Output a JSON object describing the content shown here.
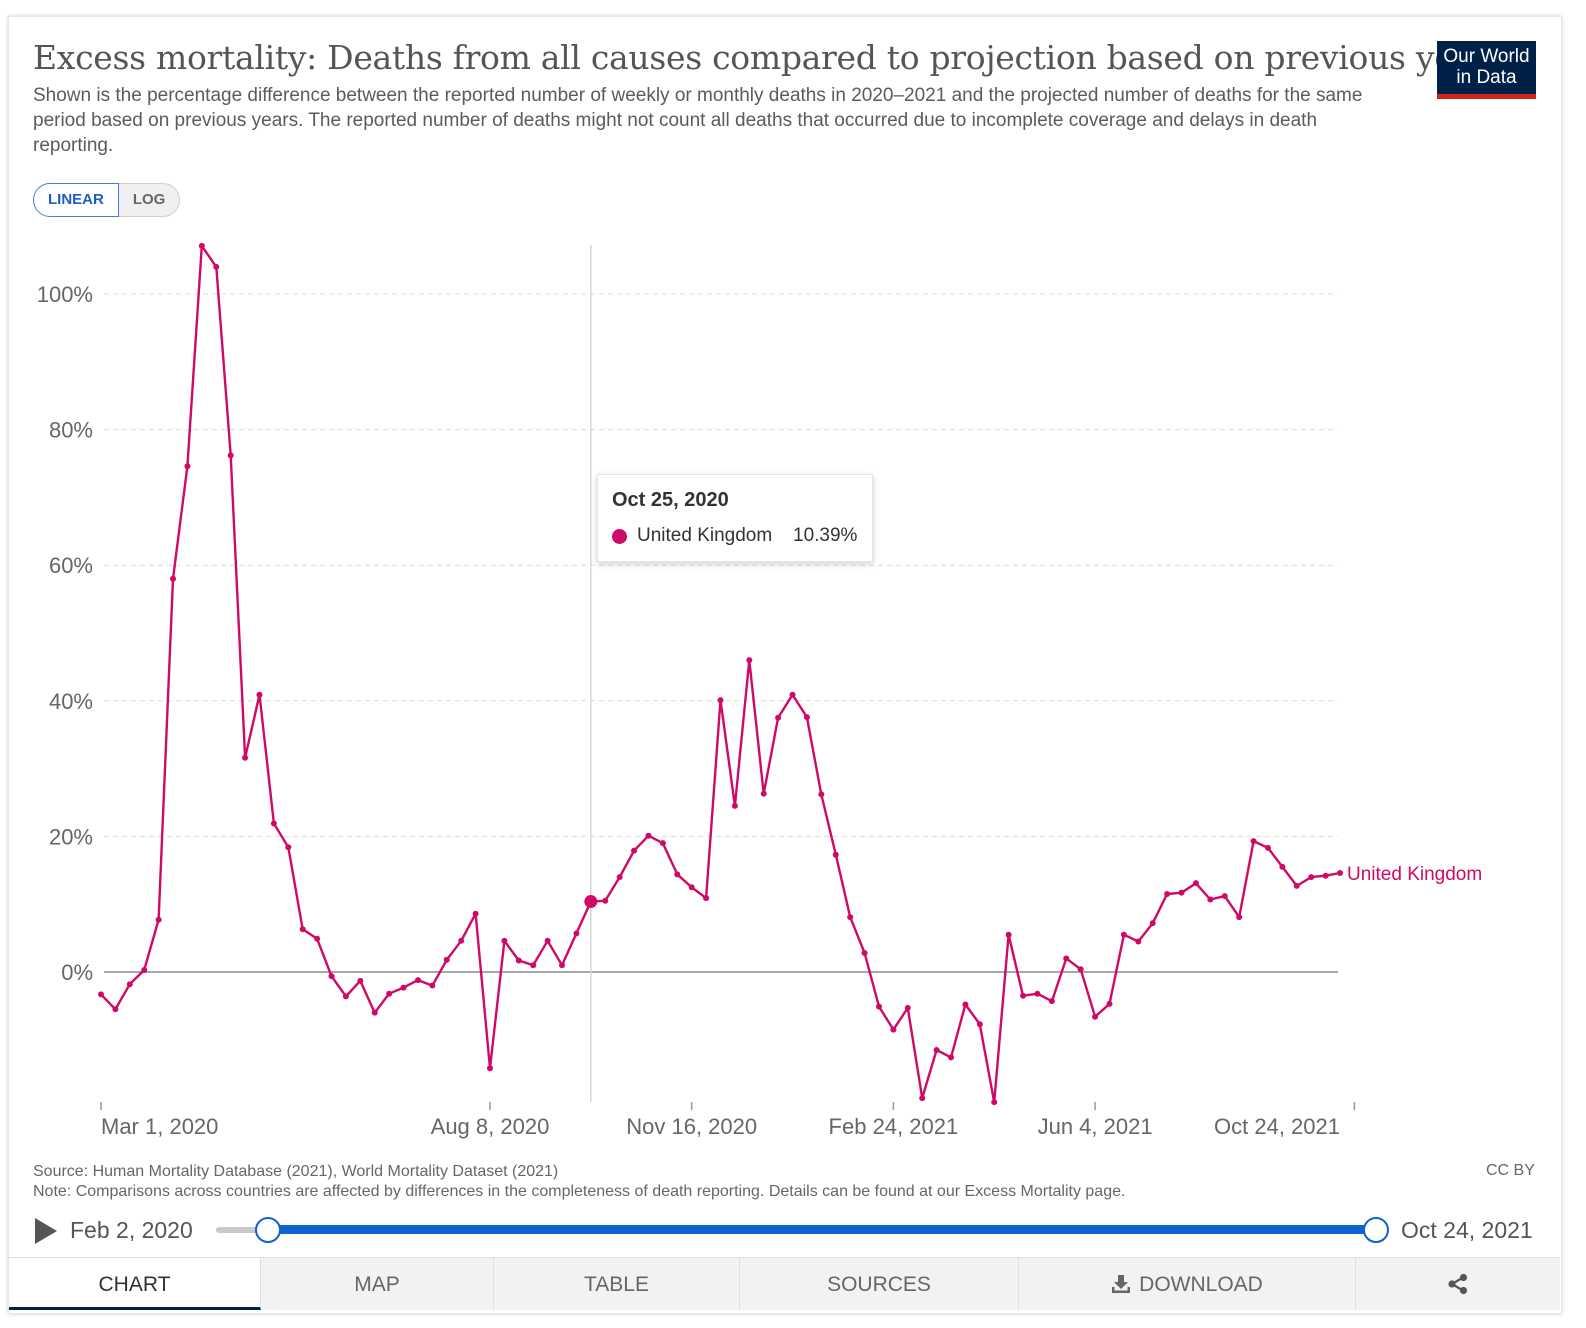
{
  "header": {
    "title": "Excess mortality: Deaths from all causes compared to projection based on previous years",
    "subtitle": "Shown is the percentage difference between the reported number of weekly or monthly deaths in 2020–2021 and the projected number of deaths for the same period based on previous years. The reported number of deaths might not count all deaths that occurred due to incomplete coverage and delays in death reporting.",
    "logo_line1": "Our World",
    "logo_line2": "in Data"
  },
  "controls": {
    "linear_label": "LINEAR",
    "log_label": "LOG"
  },
  "tooltip": {
    "date": "Oct 25, 2020",
    "entity": "United Kingdom",
    "value": "10.39%"
  },
  "chart_data": {
    "type": "line",
    "title": "Excess mortality: Deaths from all causes compared to projection based on previous years",
    "ylabel": "",
    "ylim": [
      -19,
      107
    ],
    "y_ticks": [
      0,
      20,
      40,
      60,
      80,
      100
    ],
    "y_tick_labels": [
      "0%",
      "20%",
      "40%",
      "60%",
      "80%",
      "100%"
    ],
    "x_tick_labels": [
      "Mar 1, 2020",
      "Aug 8, 2020",
      "Nov 16, 2020",
      "Feb 24, 2021",
      "Jun 4, 2021",
      "Oct 24, 2021"
    ],
    "x_tick_weeks": [
      4,
      27,
      41,
      55,
      69,
      87
    ],
    "series": [
      {
        "name": "United Kingdom",
        "color": "#cf0a66",
        "start": "Feb 2, 2020",
        "end": "Oct 24, 2021",
        "interval": "weekly",
        "values": [
          -3.3,
          -5.5,
          -1.8,
          0.3,
          7.7,
          58.0,
          74.6,
          107.1,
          104.0,
          76.2,
          31.6,
          40.9,
          21.9,
          18.4,
          6.3,
          4.9,
          -0.6,
          -3.6,
          -1.3,
          -6.0,
          -3.2,
          -2.3,
          -1.2,
          -2.0,
          1.8,
          4.6,
          8.6,
          -14.2,
          4.6,
          1.7,
          1.0,
          4.6,
          1.0,
          5.7,
          10.39,
          10.5,
          14.0,
          17.9,
          20.1,
          19.0,
          14.4,
          12.5,
          10.9,
          40.1,
          24.5,
          46.0,
          26.3,
          37.5,
          40.9,
          37.6,
          26.2,
          17.3,
          8.1,
          2.8,
          -5.1,
          -8.5,
          -5.3,
          -18.6,
          -11.5,
          -12.6,
          -4.8,
          -7.7,
          -19.2,
          5.5,
          -3.5,
          -3.2,
          -4.3,
          2.0,
          0.4,
          -6.6,
          -4.7,
          5.5,
          4.5,
          7.2,
          11.5,
          11.7,
          13.1,
          10.7,
          11.2,
          8.1,
          19.3,
          18.3,
          15.5,
          12.7,
          14.0,
          14.2,
          14.6
        ]
      }
    ],
    "highlight": {
      "date": "Oct 25, 2020",
      "index": 34,
      "value": 10.39
    },
    "end_label": "United Kingdom"
  },
  "footer": {
    "source": "Source: Human Mortality Database (2021), World Mortality Dataset (2021)",
    "note": "Note: Comparisons across countries are affected by differences in the completeness of death reporting. Details can be found at our Excess Mortality page.",
    "license": "CC BY"
  },
  "timeline": {
    "start_label": "Feb 2, 2020",
    "end_label": "Oct 24, 2021"
  },
  "tabs": {
    "chart": "CHART",
    "map": "MAP",
    "table": "TABLE",
    "sources": "SOURCES",
    "download": "DOWNLOAD"
  }
}
